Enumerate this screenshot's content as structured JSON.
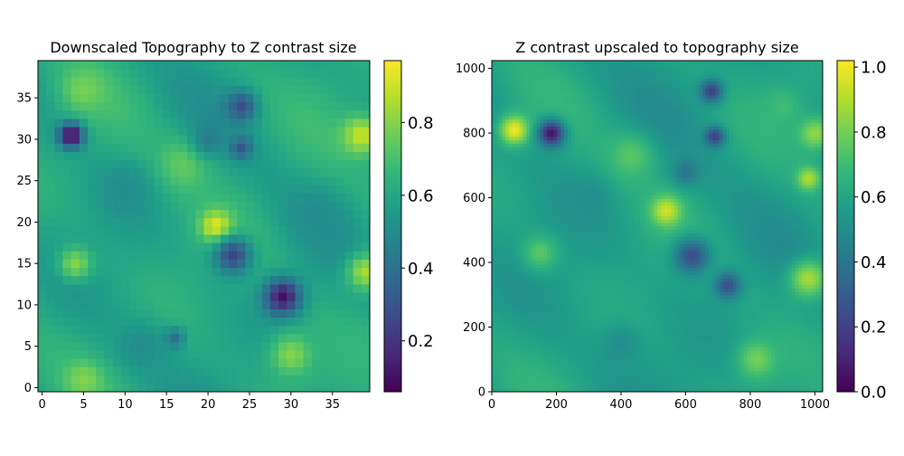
{
  "figure": {
    "background": "#ffffff",
    "colormap": "viridis",
    "colormap_stops": [
      "#440154",
      "#482878",
      "#3e4989",
      "#31688e",
      "#26828e",
      "#1f9e89",
      "#35b779",
      "#6ece58",
      "#b5de2b",
      "#fde725"
    ]
  },
  "chart_data": [
    {
      "type": "heatmap",
      "title": "Downscaled Topography to Z contrast size",
      "xlabel": "",
      "ylabel": "",
      "grid_size": [
        40,
        40
      ],
      "origin": "lower",
      "xlim": [
        -0.5,
        39.5
      ],
      "ylim": [
        -0.5,
        39.5
      ],
      "xticks": [
        0,
        5,
        10,
        15,
        20,
        25,
        30,
        35
      ],
      "yticks": [
        0,
        5,
        10,
        15,
        20,
        25,
        30,
        35
      ],
      "xtick_labels": [
        "0",
        "5",
        "10",
        "15",
        "20",
        "25",
        "30",
        "35"
      ],
      "ytick_labels": [
        "0",
        "5",
        "10",
        "15",
        "20",
        "25",
        "30",
        "35"
      ],
      "colorbar": {
        "range": [
          0.06,
          0.97
        ],
        "ticks": [
          0.2,
          0.4,
          0.6,
          0.8
        ],
        "tick_labels": [
          "0.2",
          "0.4",
          "0.6",
          "0.8"
        ]
      },
      "background_level": 0.6,
      "features": [
        {
          "x": 3.5,
          "y": 30.5,
          "r": 1.5,
          "value": 0.05
        },
        {
          "x": 21,
          "y": 19.5,
          "r": 1.8,
          "value": 0.95
        },
        {
          "x": 29,
          "y": 11,
          "r": 2.2,
          "value": 0.1
        },
        {
          "x": 24,
          "y": 34,
          "r": 1.8,
          "value": 0.28
        },
        {
          "x": 24,
          "y": 29,
          "r": 1.3,
          "value": 0.3
        },
        {
          "x": 23,
          "y": 16,
          "r": 2.2,
          "value": 0.25
        },
        {
          "x": 38.5,
          "y": 30.5,
          "r": 2.3,
          "value": 0.9
        },
        {
          "x": 39,
          "y": 14,
          "r": 2.3,
          "value": 0.85
        },
        {
          "x": 4,
          "y": 15,
          "r": 2,
          "value": 0.8
        },
        {
          "x": 5,
          "y": 36,
          "r": 2.5,
          "value": 0.78
        },
        {
          "x": 30,
          "y": 4,
          "r": 2.5,
          "value": 0.8
        },
        {
          "x": 5,
          "y": 1,
          "r": 2,
          "value": 0.8
        },
        {
          "x": 17,
          "y": 27,
          "r": 3,
          "value": 0.75
        },
        {
          "x": 12,
          "y": 5,
          "r": 3,
          "value": 0.5
        },
        {
          "x": 10,
          "y": 24,
          "r": 3,
          "value": 0.5
        },
        {
          "x": 33,
          "y": 21,
          "r": 3,
          "value": 0.5
        },
        {
          "x": 16,
          "y": 6,
          "r": 1.2,
          "value": 0.4
        },
        {
          "x": 20,
          "y": 30,
          "r": 2,
          "value": 0.45
        }
      ]
    },
    {
      "type": "heatmap",
      "title": "Z contrast upscaled to topography size",
      "xlabel": "",
      "ylabel": "",
      "grid_size": [
        1024,
        1024
      ],
      "origin": "lower",
      "xlim": [
        0,
        1024
      ],
      "ylim": [
        0,
        1024
      ],
      "xticks": [
        0,
        200,
        400,
        600,
        800,
        1000
      ],
      "yticks": [
        0,
        200,
        400,
        600,
        800,
        1000
      ],
      "xtick_labels": [
        "0",
        "200",
        "400",
        "600",
        "800",
        "1000"
      ],
      "ytick_labels": [
        "0",
        "200",
        "400",
        "600",
        "800",
        "1000"
      ],
      "colorbar": {
        "range": [
          0.0,
          1.02
        ],
        "ticks": [
          0.0,
          0.2,
          0.4,
          0.6,
          0.8,
          1.0
        ],
        "tick_labels": [
          "0.0",
          "0.2",
          "0.4",
          "0.6",
          "0.8",
          "1.0"
        ]
      },
      "background_level": 0.58,
      "features": [
        {
          "x": 70,
          "y": 810,
          "r": 45,
          "value": 1.0
        },
        {
          "x": 185,
          "y": 800,
          "r": 40,
          "value": 0.05
        },
        {
          "x": 540,
          "y": 560,
          "r": 45,
          "value": 0.95
        },
        {
          "x": 620,
          "y": 420,
          "r": 55,
          "value": 0.25
        },
        {
          "x": 730,
          "y": 330,
          "r": 40,
          "value": 0.25
        },
        {
          "x": 680,
          "y": 930,
          "r": 35,
          "value": 0.2
        },
        {
          "x": 690,
          "y": 790,
          "r": 30,
          "value": 0.2
        },
        {
          "x": 980,
          "y": 660,
          "r": 35,
          "value": 0.9
        },
        {
          "x": 980,
          "y": 350,
          "r": 60,
          "value": 0.88
        },
        {
          "x": 1000,
          "y": 800,
          "r": 50,
          "value": 0.85
        },
        {
          "x": 820,
          "y": 100,
          "r": 60,
          "value": 0.8
        },
        {
          "x": 150,
          "y": 430,
          "r": 55,
          "value": 0.75
        },
        {
          "x": 430,
          "y": 730,
          "r": 70,
          "value": 0.75
        },
        {
          "x": 600,
          "y": 680,
          "r": 40,
          "value": 0.4
        },
        {
          "x": 900,
          "y": 880,
          "r": 60,
          "value": 0.7
        },
        {
          "x": 400,
          "y": 150,
          "r": 60,
          "value": 0.5
        },
        {
          "x": 300,
          "y": 600,
          "r": 60,
          "value": 0.5
        }
      ]
    }
  ]
}
